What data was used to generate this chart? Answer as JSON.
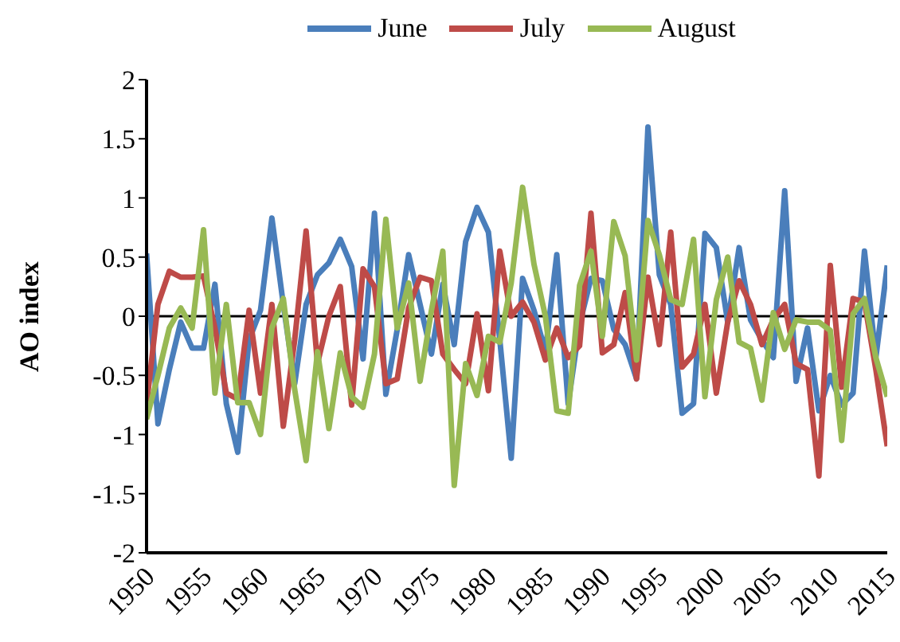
{
  "chart_data": {
    "type": "line",
    "ylabel": "AO index",
    "x": [
      1950,
      1951,
      1952,
      1953,
      1954,
      1955,
      1956,
      1957,
      1958,
      1959,
      1960,
      1961,
      1962,
      1963,
      1964,
      1965,
      1966,
      1967,
      1968,
      1969,
      1970,
      1971,
      1972,
      1973,
      1974,
      1975,
      1976,
      1977,
      1978,
      1979,
      1980,
      1981,
      1982,
      1983,
      1984,
      1985,
      1986,
      1987,
      1988,
      1989,
      1990,
      1991,
      1992,
      1993,
      1994,
      1995,
      1996,
      1997,
      1998,
      1999,
      2000,
      2001,
      2002,
      2003,
      2004,
      2005,
      2006,
      2007,
      2008,
      2009,
      2010,
      2011,
      2012,
      2013,
      2014,
      2015
    ],
    "series": [
      {
        "name": "June",
        "color": "#4a7ebb",
        "values": [
          0.53,
          -0.91,
          -0.45,
          -0.05,
          -0.27,
          -0.27,
          0.27,
          -0.74,
          -1.15,
          -0.2,
          0.05,
          0.83,
          0.1,
          -0.57,
          0.1,
          0.35,
          0.45,
          0.65,
          0.42,
          -0.36,
          0.87,
          -0.66,
          -0.11,
          0.52,
          0.1,
          -0.32,
          0.27,
          -0.24,
          0.63,
          0.92,
          0.71,
          -0.2,
          -1.2,
          0.32,
          0.05,
          -0.3,
          0.52,
          -0.74,
          -0.07,
          0.32,
          0.3,
          -0.11,
          -0.24,
          -0.53,
          1.6,
          0.35,
          0.1,
          -0.82,
          -0.74,
          0.7,
          0.58,
          -0.05,
          0.58,
          -0.03,
          -0.2,
          -0.35,
          1.06,
          -0.55,
          -0.1,
          -0.8,
          -0.5,
          -0.75,
          -0.65,
          0.55,
          -0.35,
          0.43
        ]
      },
      {
        "name": "July",
        "color": "#be4b48",
        "values": [
          -0.75,
          0.1,
          0.38,
          0.33,
          0.33,
          0.34,
          -0.1,
          -0.65,
          -0.7,
          0.05,
          -0.65,
          0.1,
          -0.93,
          -0.2,
          0.72,
          -0.4,
          0,
          0.25,
          -0.75,
          0.4,
          0.25,
          -0.57,
          -0.53,
          0.07,
          0.33,
          0.3,
          -0.32,
          -0.45,
          -0.57,
          0.02,
          -0.63,
          0.55,
          0,
          0.12,
          -0.05,
          -0.37,
          -0.1,
          -0.35,
          -0.25,
          0.87,
          -0.31,
          -0.24,
          0.2,
          -0.53,
          0.33,
          -0.24,
          0.71,
          -0.43,
          -0.32,
          0.1,
          -0.65,
          -0.05,
          0.3,
          0.1,
          -0.24,
          -0.03,
          0.1,
          -0.4,
          -0.45,
          -1.35,
          0.43,
          -0.6,
          0.15,
          0.12,
          -0.45,
          -1.1
        ]
      },
      {
        "name": "August",
        "color": "#98b954",
        "values": [
          -0.87,
          -0.5,
          -0.1,
          0.07,
          -0.1,
          0.73,
          -0.65,
          0.1,
          -0.73,
          -0.73,
          -1.0,
          -0.1,
          0.15,
          -0.62,
          -1.22,
          -0.3,
          -0.95,
          -0.31,
          -0.68,
          -0.77,
          -0.32,
          0.82,
          -0.1,
          0.28,
          -0.55,
          0.05,
          0.55,
          -1.43,
          -0.4,
          -0.67,
          -0.17,
          -0.22,
          0.28,
          1.09,
          0.44,
          0,
          -0.8,
          -0.82,
          0.26,
          0.55,
          -0.17,
          0.8,
          0.51,
          -0.37,
          0.81,
          0.52,
          0.14,
          0.1,
          0.65,
          -0.68,
          0.14,
          0.5,
          -0.22,
          -0.27,
          -0.71,
          0.03,
          -0.28,
          -0.03,
          -0.05,
          -0.05,
          -0.12,
          -1.05,
          0.02,
          0.15,
          -0.35,
          -0.68
        ]
      }
    ],
    "xlim": [
      1950,
      2015
    ],
    "xticks": [
      1950,
      1955,
      1960,
      1965,
      1970,
      1975,
      1980,
      1985,
      1990,
      1995,
      2000,
      2005,
      2010,
      2015
    ],
    "ylim": [
      -2,
      2
    ],
    "yticks": [
      -2,
      -1.5,
      -1,
      -0.5,
      0,
      0.5,
      1,
      1.5,
      2
    ],
    "ref_lines": [
      {
        "axis": "y",
        "value": 0,
        "color": "#000000"
      }
    ],
    "grid": false,
    "legend": "top",
    "marker": "none",
    "line_style": "solid"
  }
}
